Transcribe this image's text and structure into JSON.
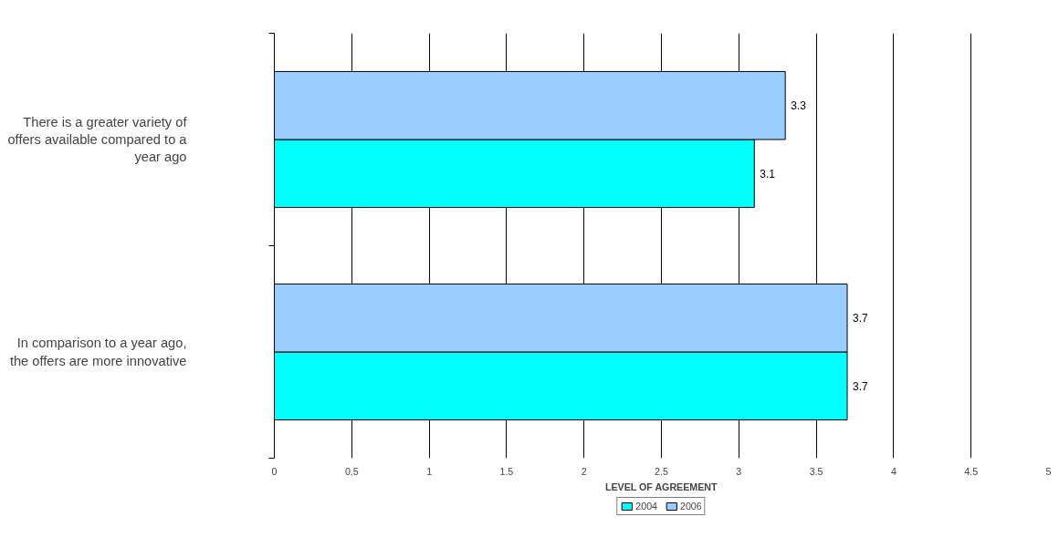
{
  "chart_data": {
    "type": "bar",
    "orientation": "horizontal",
    "xlabel": "LEVEL OF AGREEMENT",
    "categories": [
      "There is a greater variety of offers available compared to a year ago",
      "In comparison to a year ago, the offers are more innovative"
    ],
    "series": [
      {
        "name": "2004",
        "color": "#00ffff",
        "values": [
          3.1,
          3.7
        ]
      },
      {
        "name": "2006",
        "color": "#99ccff",
        "values": [
          3.3,
          3.7
        ]
      }
    ],
    "xlim": [
      0,
      5
    ],
    "xticks": [
      0,
      0.5,
      1,
      1.5,
      2,
      2.5,
      3,
      3.5,
      4,
      4.5,
      5
    ],
    "grid": "x",
    "legend": "bottom",
    "data_labels": true
  }
}
